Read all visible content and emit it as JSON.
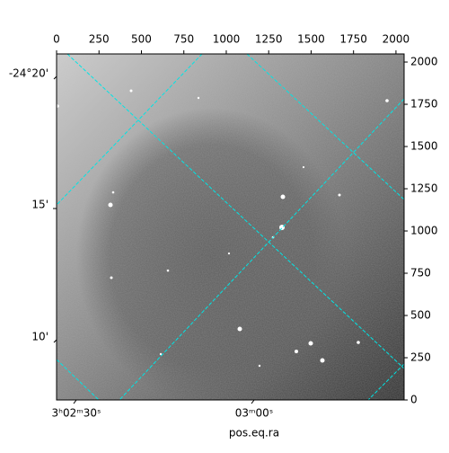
{
  "chart_data": {
    "type": "image",
    "xlabel": "pos.eq.ra",
    "xlim": [
      0,
      2048
    ],
    "xticks": [
      0,
      250,
      500,
      750,
      1000,
      1250,
      1500,
      1750,
      2000
    ],
    "ylim": [
      0,
      2048
    ],
    "yticks": [
      0,
      250,
      500,
      750,
      1000,
      1250,
      1500,
      1750,
      2000
    ],
    "ra_tick_labels": [
      "3ʰ02ᵐ30ˢ",
      "03ᵐ00ˢ"
    ],
    "dec_tick_labels": [
      "-24°20'",
      "15'",
      "10'"
    ],
    "grid_color": "#00e5e5"
  }
}
